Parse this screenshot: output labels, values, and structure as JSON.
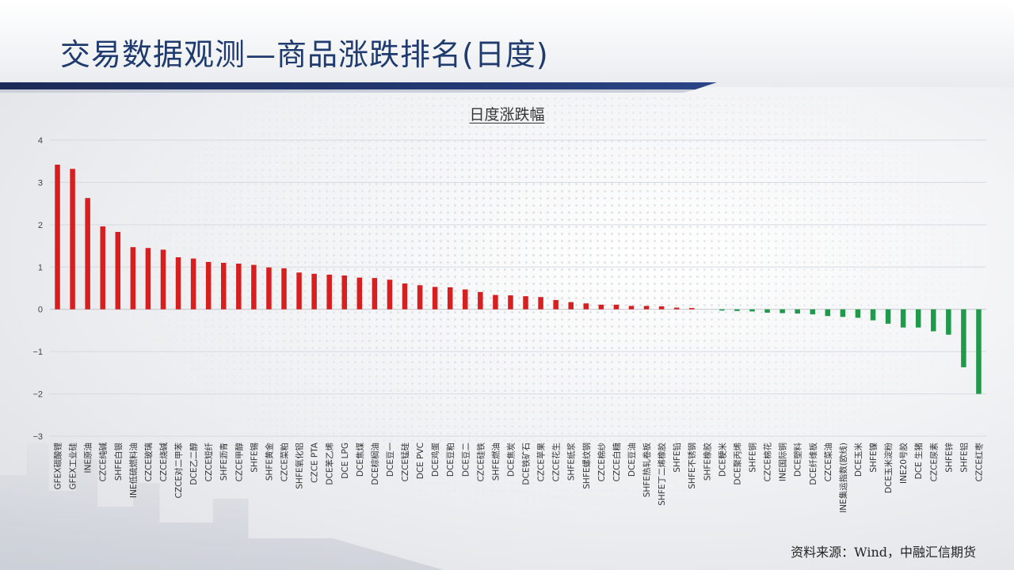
{
  "header": {
    "title": "交易数据观测—商品涨跌排名(日度)"
  },
  "source": "资料来源：Wind，中融汇信期货",
  "colors": {
    "up": "#d71f1f",
    "down": "#1f9a4a",
    "title": "#1f3a6e",
    "band": "#1c2a57"
  },
  "chart_data": {
    "type": "bar",
    "title": "日度涨跌幅",
    "xlabel": "",
    "ylabel": "",
    "ylim": [
      -3,
      4
    ],
    "yticks": [
      4,
      3,
      2,
      1,
      0,
      -1,
      -2,
      -3
    ],
    "grid": true,
    "legend": "none",
    "categories": [
      "GFEX碳酸锂",
      "GFEX工业硅",
      "INE原油",
      "CZCE纯碱",
      "SHFE白银",
      "INE低硫燃料油",
      "CZCE玻璃",
      "CZCE烧碱",
      "CZCE对二甲苯",
      "DCE乙二醇",
      "CZCE短纤",
      "SHFE沥青",
      "CZCE甲醇",
      "SHFE锡",
      "SHFE黄金",
      "CZCE菜粕",
      "SHFE氧化铝",
      "CZCE PTA",
      "DCE苯乙烯",
      "DCE LPG",
      "DCE焦煤",
      "DCE棕榈油",
      "DCE豆一",
      "CZCE锰硅",
      "DCE PVC",
      "DCE鸡蛋",
      "DCE豆粕",
      "DCE豆二",
      "CZCE硅铁",
      "SHFE燃油",
      "DCE焦炭",
      "DCE铁矿石",
      "CZCE苹果",
      "CZCE花生",
      "SHFE纸浆",
      "SHFE螺纹钢",
      "CZCE棉纱",
      "CZCE白糖",
      "DCE豆油",
      "SHFE热轧卷板",
      "SHFE丁二烯橡胶",
      "SHFE铅",
      "SHFE不锈钢",
      "SHFE橡胶",
      "DCE粳米",
      "DCE聚丙烯",
      "SHFE铜",
      "CZCE棉花",
      "INE国际铜",
      "DCE塑料",
      "DCE纤维板",
      "CZCE菜油",
      "INE集运指数(欧线)",
      "DCE玉米",
      "SHFE镍",
      "DCE玉米淀粉",
      "INE20号胶",
      "DCE 生猪",
      "CZCE尿素",
      "SHFE锌",
      "SHFE铝",
      "CZCE红枣"
    ],
    "values": [
      3.42,
      3.32,
      2.63,
      1.96,
      1.83,
      1.47,
      1.45,
      1.41,
      1.23,
      1.2,
      1.12,
      1.1,
      1.08,
      1.05,
      0.99,
      0.97,
      0.87,
      0.84,
      0.82,
      0.8,
      0.75,
      0.74,
      0.7,
      0.61,
      0.57,
      0.53,
      0.52,
      0.47,
      0.41,
      0.34,
      0.33,
      0.31,
      0.29,
      0.22,
      0.17,
      0.14,
      0.11,
      0.11,
      0.08,
      0.08,
      0.07,
      0.04,
      0.03,
      0.0,
      -0.03,
      -0.04,
      -0.05,
      -0.08,
      -0.09,
      -0.1,
      -0.12,
      -0.16,
      -0.18,
      -0.2,
      -0.26,
      -0.34,
      -0.43,
      -0.43,
      -0.52,
      -0.6,
      -1.37,
      -2.0
    ]
  }
}
